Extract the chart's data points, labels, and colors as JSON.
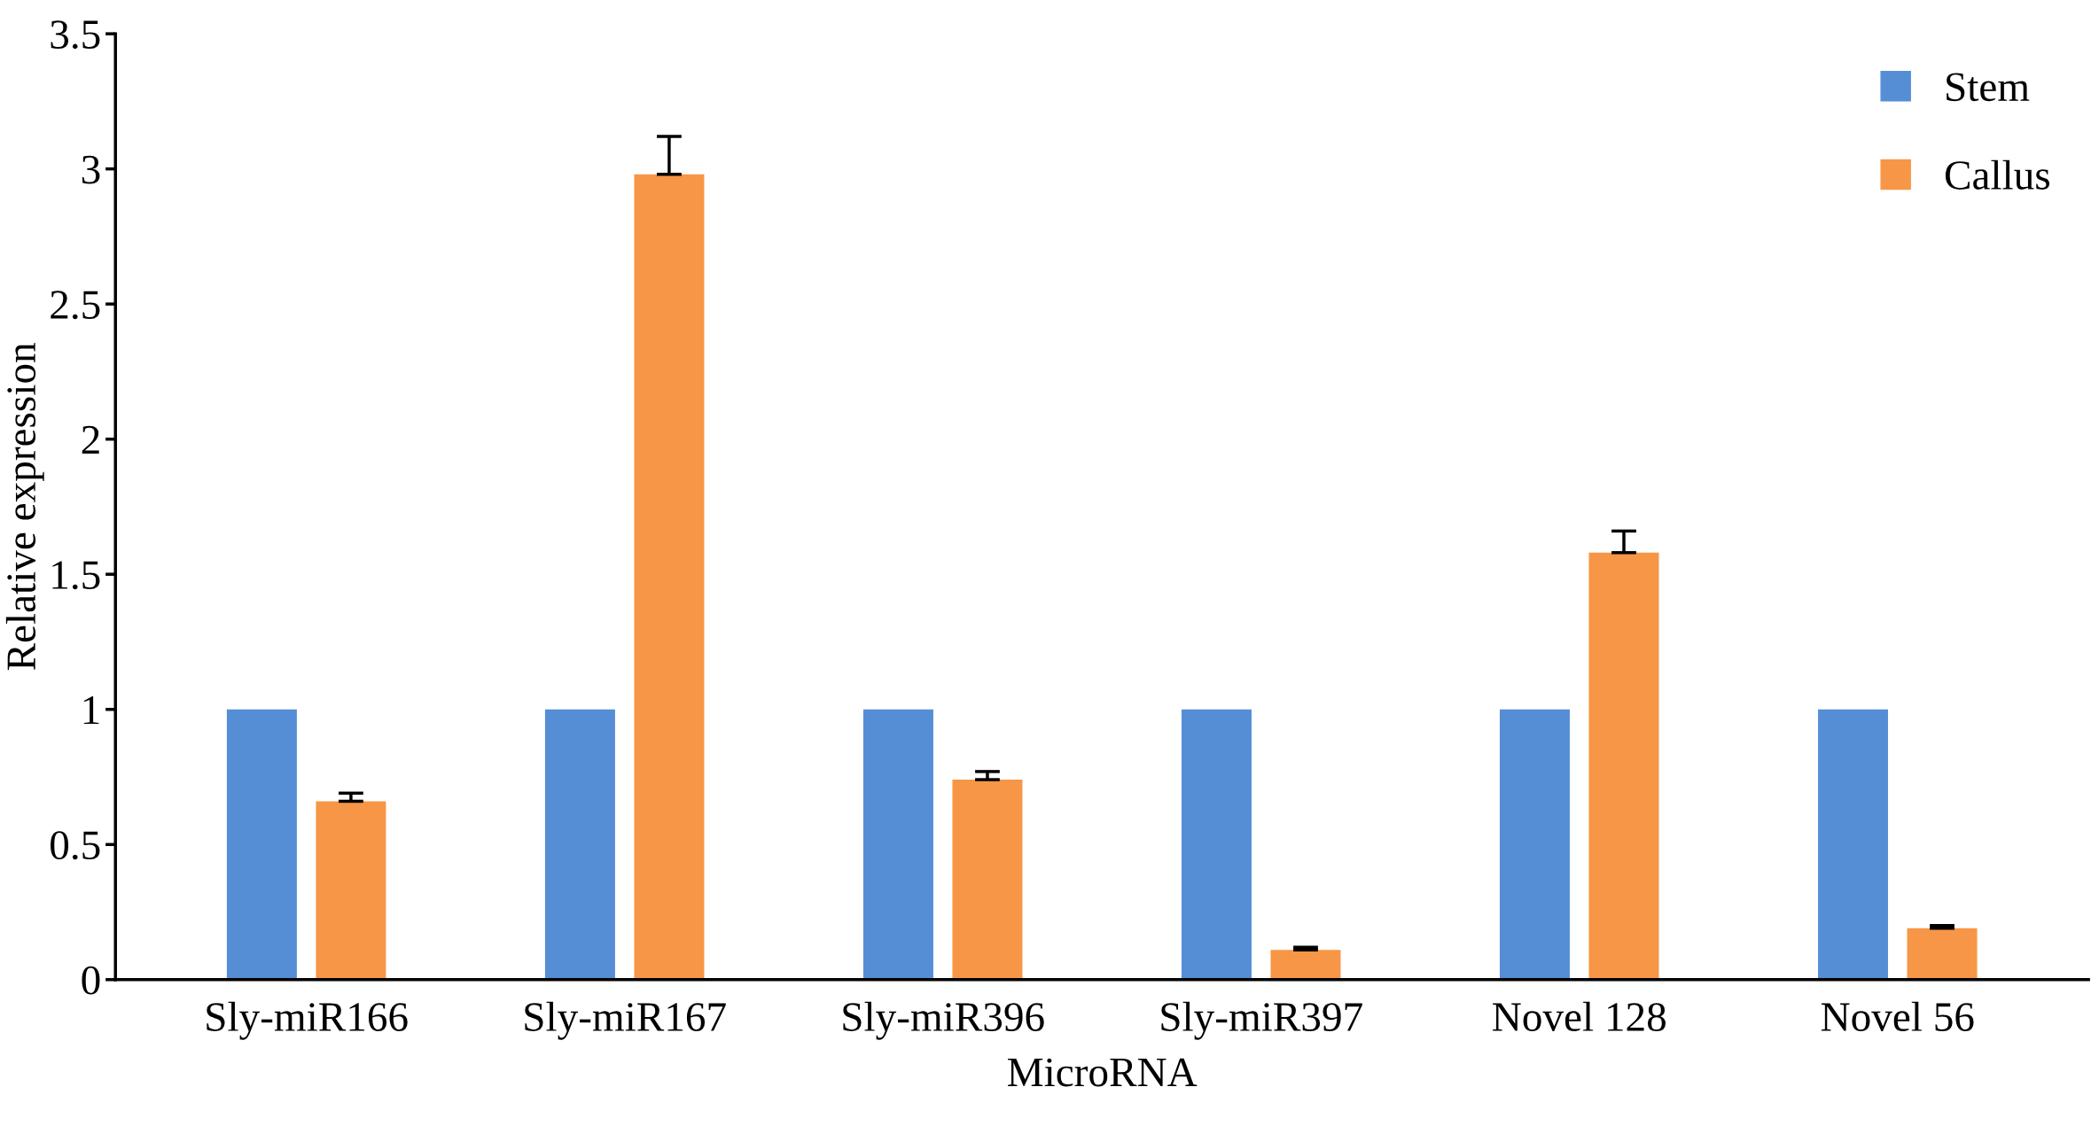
{
  "chart_data": {
    "type": "bar",
    "xlabel": "MicroRNA",
    "ylabel": "Relative expression",
    "categories": [
      "Sly-miR166",
      "Sly-miR167",
      "Sly-miR396",
      "Sly-miR397",
      "Novel 128",
      "Novel 56"
    ],
    "series": [
      {
        "name": "Stem",
        "color": "#558ed5",
        "values": [
          1,
          1,
          1,
          1,
          1,
          1
        ]
      },
      {
        "name": "Callus",
        "color": "#f79646",
        "values": [
          0.66,
          2.98,
          0.74,
          0.11,
          1.58,
          0.19
        ],
        "errors": [
          [
            0.66,
            0.69
          ],
          [
            2.98,
            3.12
          ],
          [
            0.74,
            0.77
          ],
          [
            0.11,
            0.12
          ],
          [
            1.58,
            1.66
          ],
          [
            0.19,
            0.2
          ]
        ]
      }
    ],
    "ylim": [
      0,
      3.5
    ],
    "yticks": [
      0,
      0.5,
      1,
      1.5,
      2,
      2.5,
      3,
      3.5
    ],
    "grid": false,
    "legend": "top right"
  }
}
